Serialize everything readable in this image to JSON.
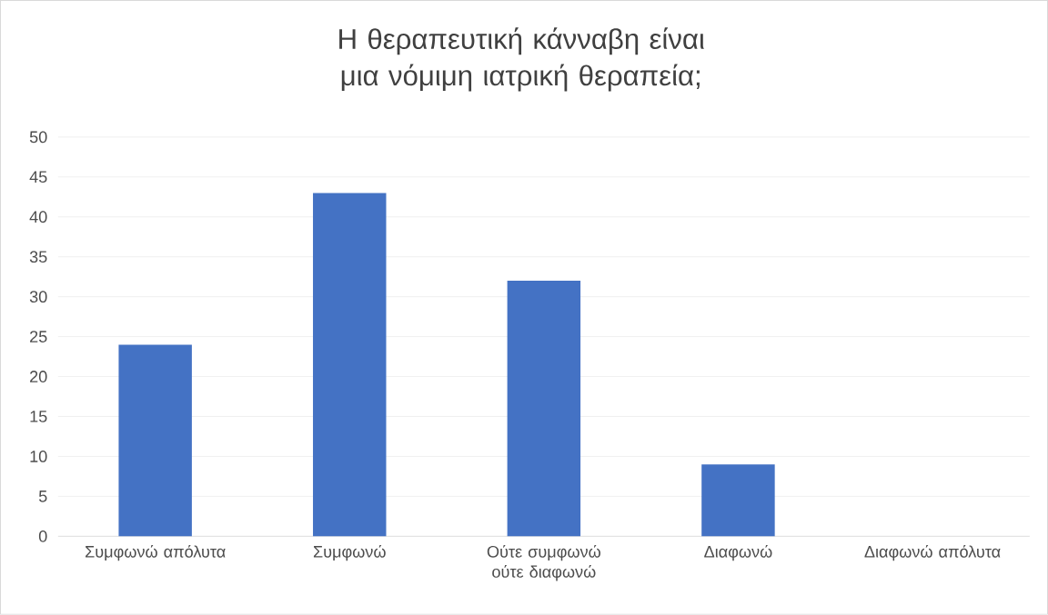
{
  "chart_data": {
    "type": "bar",
    "title": "Η θεραπευτική κάνναβη είναι μια νόμιμη ιατρική θεραπεία;",
    "categories": [
      "Συμφωνώ απόλυτα",
      "Συμφωνώ",
      "Ούτε συμφωνώ ούτε διαφωνώ",
      "Διαφωνώ",
      "Διαφωνώ απόλυτα"
    ],
    "values": [
      24,
      43,
      32,
      9,
      0
    ],
    "color": "#4472c4",
    "ylim": [
      0,
      50
    ],
    "yticks": [
      0,
      5,
      10,
      15,
      20,
      25,
      30,
      35,
      40,
      45,
      50
    ],
    "grid": "y"
  }
}
